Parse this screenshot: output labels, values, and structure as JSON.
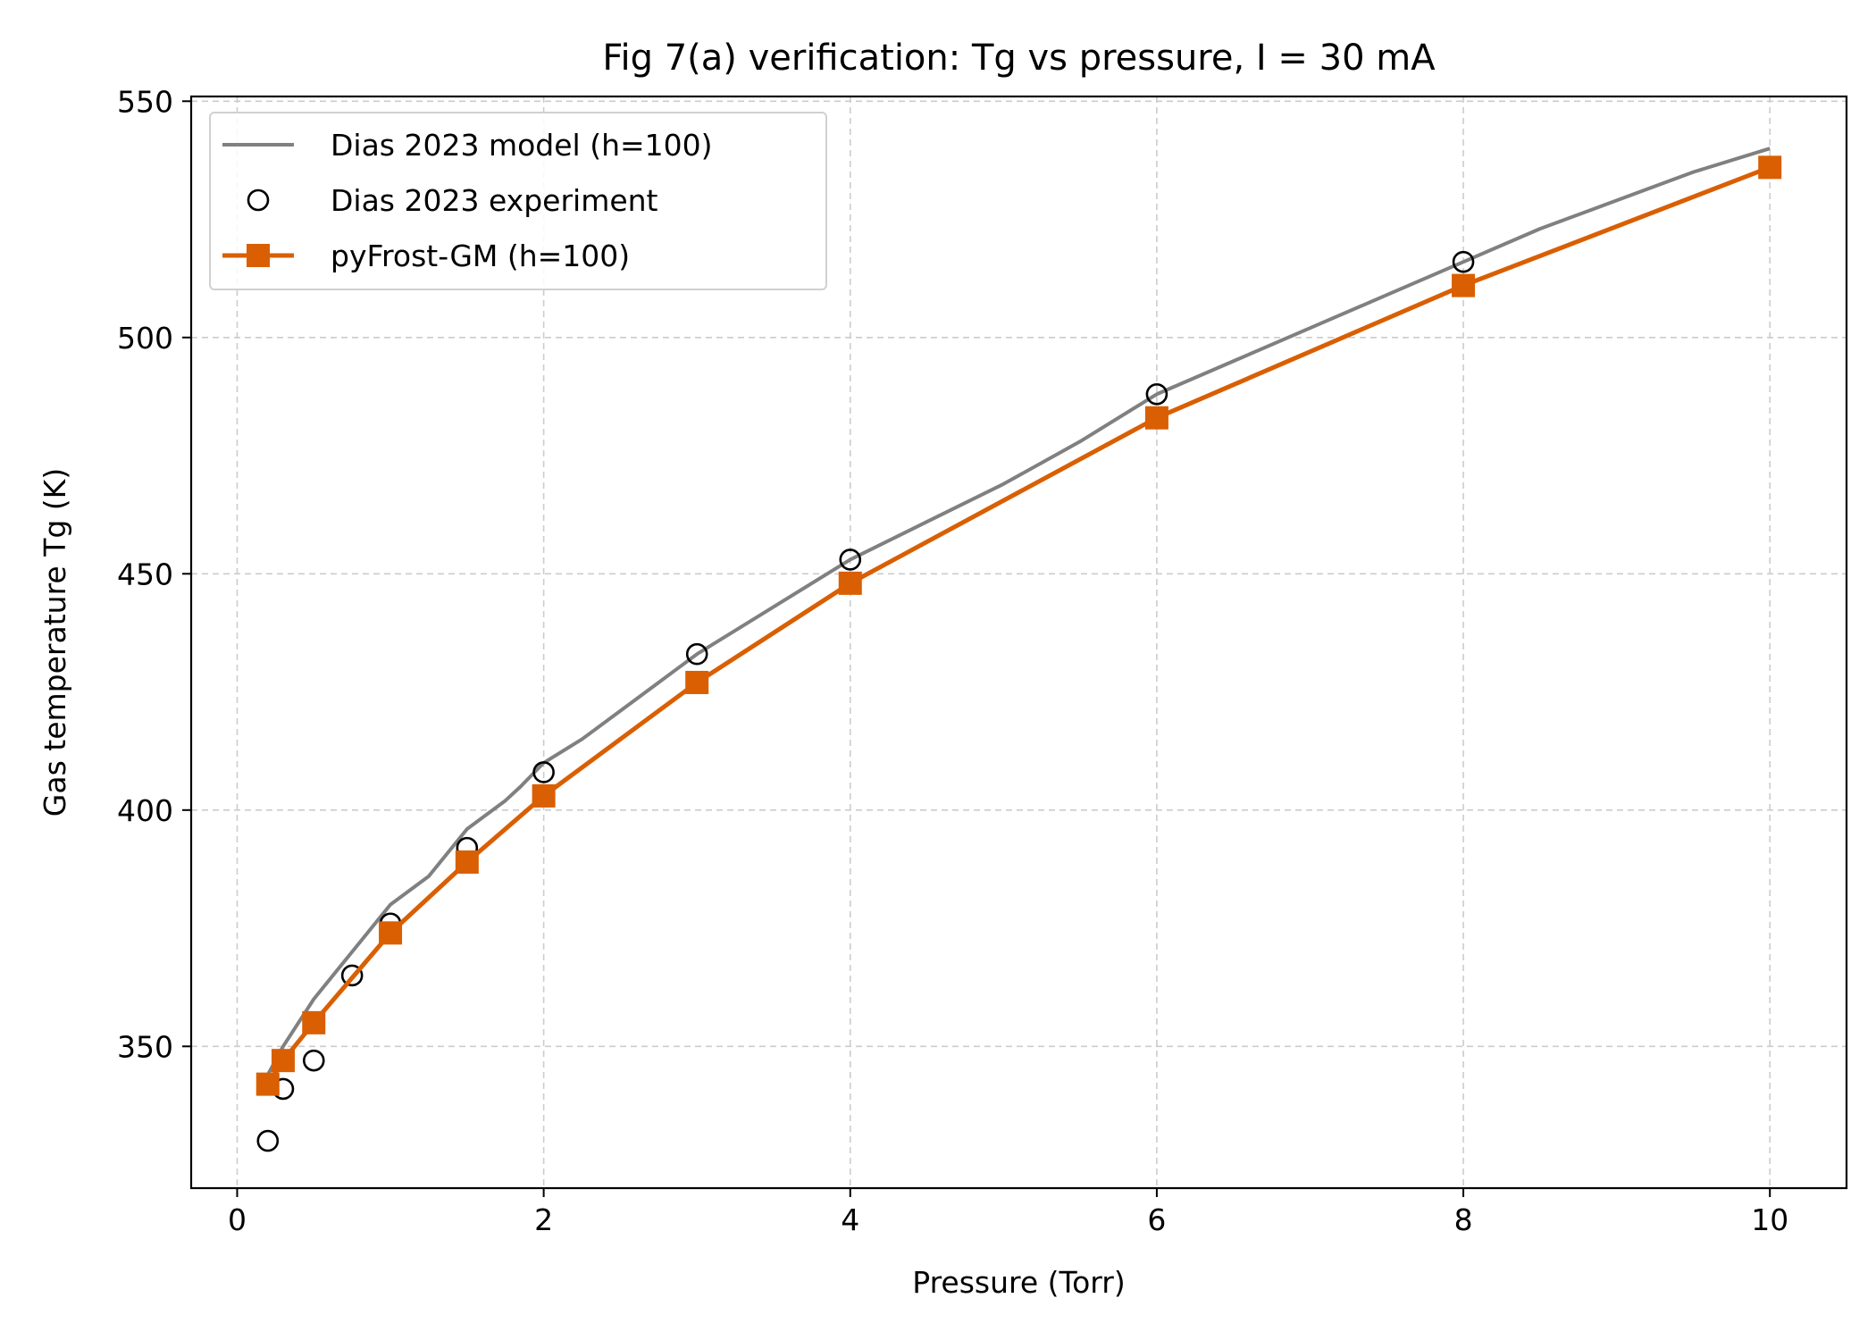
{
  "chart_data": {
    "type": "line",
    "title": "Fig 7(a) verification: Tg vs pressure, I = 30 mA",
    "xlabel": "Pressure (Torr)",
    "ylabel": "Gas temperature Tg (K)",
    "xlim": [
      -0.3,
      10.5
    ],
    "ylim": [
      320,
      551
    ],
    "xticks": [
      0,
      2,
      4,
      6,
      8,
      10
    ],
    "yticks": [
      350,
      400,
      450,
      500,
      550
    ],
    "grid": true,
    "legend_position": "top-left",
    "series": [
      {
        "name": "Dias 2023 model (h=100)",
        "style": "line",
        "color": "#808080",
        "x": [
          0.2,
          0.3,
          0.5,
          0.75,
          1.0,
          1.25,
          1.5,
          1.75,
          1.85,
          2.0,
          2.25,
          2.5,
          2.75,
          3.0,
          3.5,
          4.0,
          4.5,
          5.0,
          5.5,
          6.0,
          6.5,
          7.0,
          7.5,
          8.0,
          8.5,
          9.0,
          9.5,
          10.0
        ],
        "y": [
          344,
          350,
          360,
          370,
          380,
          386,
          396,
          402,
          405,
          410,
          415,
          421,
          427,
          433,
          443,
          453,
          461,
          469,
          478,
          488,
          495,
          502,
          509,
          516,
          523,
          529,
          535,
          540
        ]
      },
      {
        "name": "Dias 2023 experiment",
        "style": "markers",
        "marker": "circle-open",
        "color": "#000000",
        "x": [
          0.2,
          0.3,
          0.5,
          0.75,
          1.0,
          1.5,
          2.0,
          3.0,
          4.0,
          6.0,
          8.0,
          10.0
        ],
        "y": [
          330,
          341,
          347,
          365,
          376,
          392,
          408,
          433,
          453,
          488,
          516,
          536
        ]
      },
      {
        "name": "pyFrost-GM (h=100)",
        "style": "line-markers",
        "marker": "square",
        "color": "#d95f02",
        "x": [
          0.2,
          0.3,
          0.5,
          1.0,
          1.5,
          2.0,
          3.0,
          4.0,
          6.0,
          8.0,
          10.0
        ],
        "y": [
          342,
          347,
          355,
          374,
          389,
          403,
          427,
          448,
          483,
          511,
          536
        ]
      }
    ]
  }
}
